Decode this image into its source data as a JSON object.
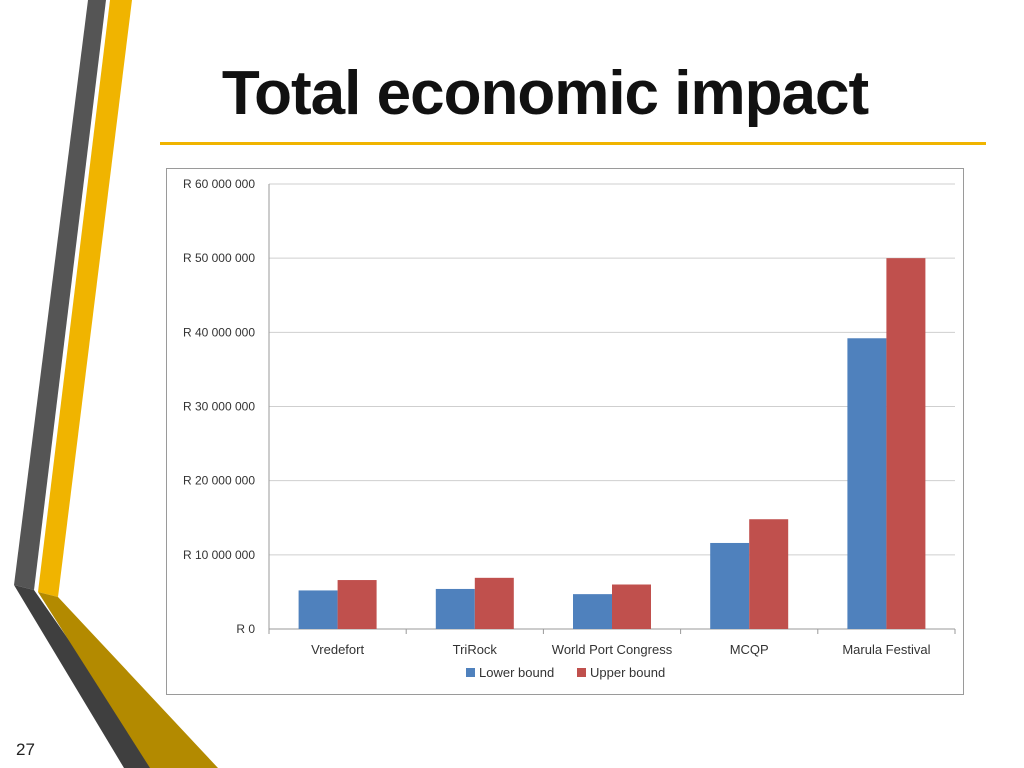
{
  "slide": {
    "title": "Total economic impact",
    "page_number": "27"
  },
  "colors": {
    "accent_yellow": "#f0b400",
    "accent_dark_yellow": "#b38a00",
    "accent_gray": "#555555",
    "series_lower": "#4f81bd",
    "series_upper": "#c0504d"
  },
  "chart_data": {
    "type": "bar",
    "title": "",
    "xlabel": "",
    "ylabel": "",
    "categories": [
      "Vredefort",
      "TriRock",
      "World Port Congress",
      "MCQP",
      "Marula Festival"
    ],
    "series": [
      {
        "name": "Lower bound",
        "color": "#4f81bd",
        "values": [
          5200000,
          5400000,
          4700000,
          11600000,
          39200000
        ]
      },
      {
        "name": "Upper bound",
        "color": "#c0504d",
        "values": [
          6600000,
          6900000,
          6000000,
          14800000,
          50000000
        ]
      }
    ],
    "ylim": [
      0,
      60000000
    ],
    "yticks": [
      0,
      10000000,
      20000000,
      30000000,
      40000000,
      50000000,
      60000000
    ],
    "ytick_labels": [
      "R 0",
      "R 10 000 000",
      "R 20 000 000",
      "R 30 000 000",
      "R 40 000 000",
      "R 50 000 000",
      "R 60 000 000"
    ],
    "grid": true,
    "legend_position": "bottom"
  }
}
